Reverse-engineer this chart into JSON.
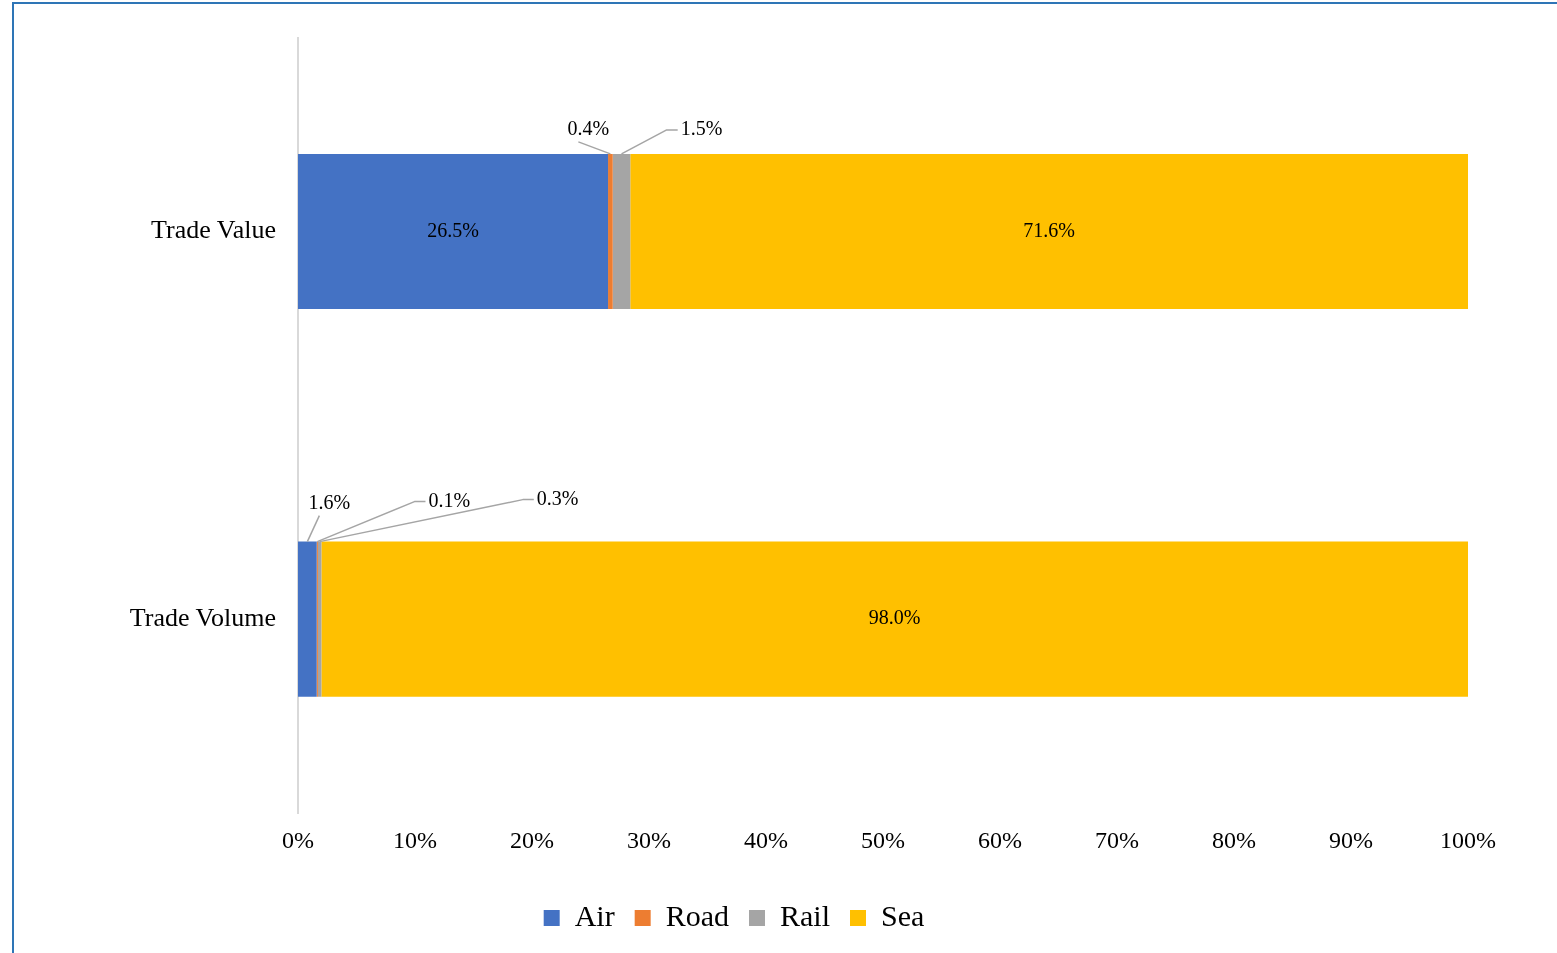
{
  "chart_data": {
    "type": "bar",
    "orientation": "horizontal",
    "stacked": true,
    "categories": [
      "Trade Value",
      "Trade Volume"
    ],
    "series": [
      {
        "name": "Air",
        "color": "#4472c4",
        "values": [
          26.5,
          1.6
        ],
        "value_labels": [
          "26.5%",
          "1.6%"
        ]
      },
      {
        "name": "Road",
        "color": "#ed7d31",
        "values": [
          0.4,
          0.1
        ],
        "value_labels": [
          "0.4%",
          "0.1%"
        ]
      },
      {
        "name": "Rail",
        "color": "#a5a5a5",
        "values": [
          1.5,
          0.3
        ],
        "value_labels": [
          "1.5%",
          "0.3%"
        ]
      },
      {
        "name": "Sea",
        "color": "#ffc000",
        "values": [
          71.6,
          98.0
        ],
        "value_labels": [
          "71.6%",
          "98.0%"
        ]
      }
    ],
    "xlim": [
      0,
      100
    ],
    "xticks": [
      {
        "value": 0,
        "label": "0%"
      },
      {
        "value": 10,
        "label": "10%"
      },
      {
        "value": 20,
        "label": "20%"
      },
      {
        "value": 30,
        "label": "30%"
      },
      {
        "value": 40,
        "label": "40%"
      },
      {
        "value": 50,
        "label": "50%"
      },
      {
        "value": 60,
        "label": "60%"
      },
      {
        "value": 70,
        "label": "70%"
      },
      {
        "value": 80,
        "label": "80%"
      },
      {
        "value": 90,
        "label": "90%"
      },
      {
        "value": 100,
        "label": "100%"
      }
    ],
    "grid": false,
    "legend": "bottom"
  }
}
